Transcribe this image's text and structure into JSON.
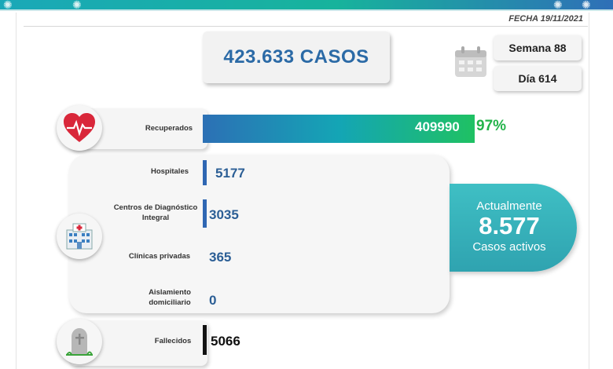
{
  "header": {
    "date": "FECHA 19/11/2021"
  },
  "summary": {
    "total_cases": "423.633 CASOS",
    "week": "Semana 88",
    "day": "Día 614"
  },
  "recovered": {
    "label": "Recuperados",
    "value": "409990",
    "percent": "97%",
    "percent_value": 0.97,
    "icon": "heart-pulse-icon"
  },
  "hospitalization": {
    "icon": "hospital-icon",
    "rows": [
      {
        "label": "Hospitales",
        "value": "5177"
      },
      {
        "label": "Centros de Diagnóstico Integral",
        "value": "3035"
      },
      {
        "label": "Clínicas privadas",
        "value": "365"
      },
      {
        "label": "Aislamiento domiciliario",
        "value": "0"
      }
    ]
  },
  "active": {
    "line1": "Actualmente",
    "count": "8.577",
    "line2": "Casos activos"
  },
  "deaths": {
    "label": "Fallecidos",
    "value": "5066",
    "icon": "tombstone-icon"
  },
  "colors": {
    "accent_blue": "#2b6aa6",
    "green": "#23b34a",
    "teal": "#3fbfc4"
  }
}
